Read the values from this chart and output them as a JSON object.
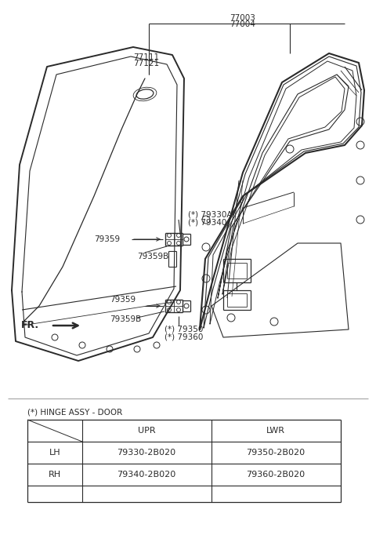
{
  "background_color": "#ffffff",
  "line_color": "#2a2a2a",
  "text_color": "#2a2a2a",
  "label_color": "#1a1a1a",
  "fig_width": 4.8,
  "fig_height": 6.82,
  "dpi": 100,
  "table_title": "(*) HINGE ASSY - DOOR",
  "table_data": {
    "headers": [
      "",
      "UPR",
      "LWR"
    ],
    "rows": [
      [
        "LH",
        "79330-2B020",
        "79350-2B020"
      ],
      [
        "RH",
        "79340-2B020",
        "79360-2B020"
      ]
    ]
  }
}
